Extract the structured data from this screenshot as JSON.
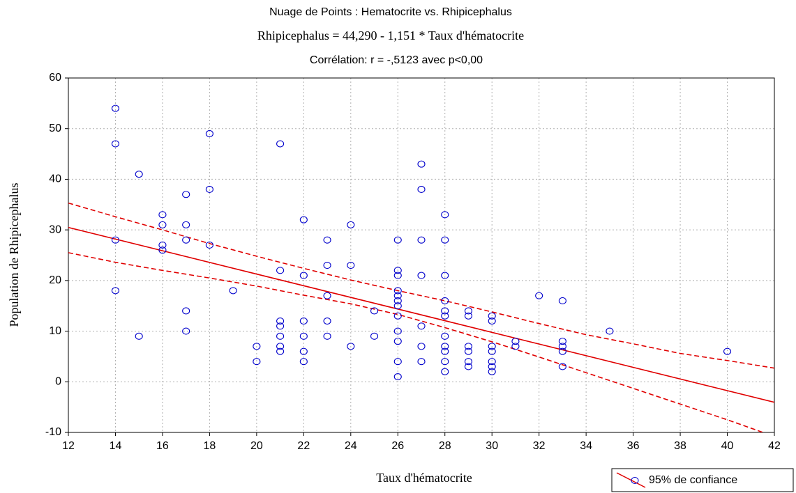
{
  "chart_data": {
    "type": "scatter",
    "title": "Nuage de Points : Hematocrite vs. Rhipicephalus",
    "subtitle": "Rhipicephalus = 44,290 - 1,151  * Taux d'hématocrite",
    "annotation": "Corrélation: r = -,5123 avec p<0,00",
    "xlabel": "Taux d'hématocrite",
    "ylabel": "Population de Rhipicephalus",
    "legend": "95% de confiance",
    "legend_position": "bottom-right",
    "grid": true,
    "xlim": [
      12,
      42
    ],
    "ylim": [
      -10,
      60
    ],
    "xticks": [
      12,
      14,
      16,
      18,
      20,
      22,
      24,
      26,
      28,
      30,
      32,
      34,
      36,
      38,
      40,
      42
    ],
    "yticks": [
      -10,
      0,
      10,
      20,
      30,
      40,
      50,
      60
    ],
    "point_color": "#0000cc",
    "line_color": "#e00000",
    "x": [
      14,
      14,
      14,
      14,
      15,
      15,
      16,
      16,
      16,
      16,
      17,
      17,
      17,
      17,
      17,
      18,
      18,
      18,
      19,
      20,
      20,
      21,
      21,
      21,
      21,
      21,
      21,
      21,
      22,
      22,
      22,
      22,
      22,
      22,
      23,
      23,
      23,
      23,
      23,
      24,
      24,
      24,
      25,
      25,
      26,
      26,
      26,
      26,
      26,
      26,
      26,
      26,
      26,
      26,
      26,
      26,
      27,
      27,
      27,
      27,
      27,
      27,
      27,
      28,
      28,
      28,
      28,
      28,
      28,
      28,
      28,
      28,
      28,
      28,
      29,
      29,
      29,
      29,
      29,
      29,
      30,
      30,
      30,
      30,
      30,
      30,
      30,
      31,
      31,
      32,
      33,
      33,
      33,
      33,
      33,
      35,
      40
    ],
    "values": [
      54,
      47,
      28,
      18,
      41,
      9,
      33,
      31,
      27,
      26,
      37,
      31,
      28,
      14,
      10,
      49,
      38,
      27,
      18,
      7,
      4,
      47,
      22,
      12,
      11,
      9,
      7,
      6,
      32,
      21,
      12,
      9,
      6,
      4,
      28,
      23,
      17,
      12,
      9,
      31,
      23,
      7,
      14,
      9,
      28,
      22,
      21,
      18,
      17,
      16,
      15,
      13,
      10,
      8,
      4,
      1,
      43,
      38,
      28,
      21,
      11,
      7,
      4,
      33,
      28,
      21,
      16,
      14,
      13,
      9,
      7,
      6,
      4,
      2,
      14,
      13,
      7,
      6,
      4,
      3,
      13,
      12,
      7,
      6,
      4,
      3,
      2,
      8,
      7,
      17,
      16,
      8,
      7,
      6,
      3,
      10,
      6
    ],
    "fit": {
      "x": [
        12,
        42
      ],
      "values": [
        30.48,
        -4.05
      ]
    },
    "upper": {
      "x": [
        12,
        14,
        16,
        18,
        20,
        22,
        24,
        26,
        28,
        30,
        32,
        34,
        36,
        38,
        40,
        42
      ],
      "values": [
        35.3,
        32.6,
        30,
        27.3,
        24.8,
        22.4,
        20.1,
        18,
        16,
        13.8,
        11.5,
        9.3,
        7.5,
        5.6,
        4.2,
        2.7
      ]
    },
    "lower": {
      "x": [
        12,
        14,
        16,
        18,
        20,
        22,
        24,
        26,
        28,
        30,
        32,
        34,
        36,
        38,
        40,
        42
      ],
      "values": [
        25.5,
        23.6,
        22,
        20.5,
        18.9,
        17.1,
        15.4,
        13.3,
        10.7,
        7.9,
        4.9,
        1.8,
        -1.3,
        -4.4,
        -7.5,
        -10.8
      ]
    }
  }
}
